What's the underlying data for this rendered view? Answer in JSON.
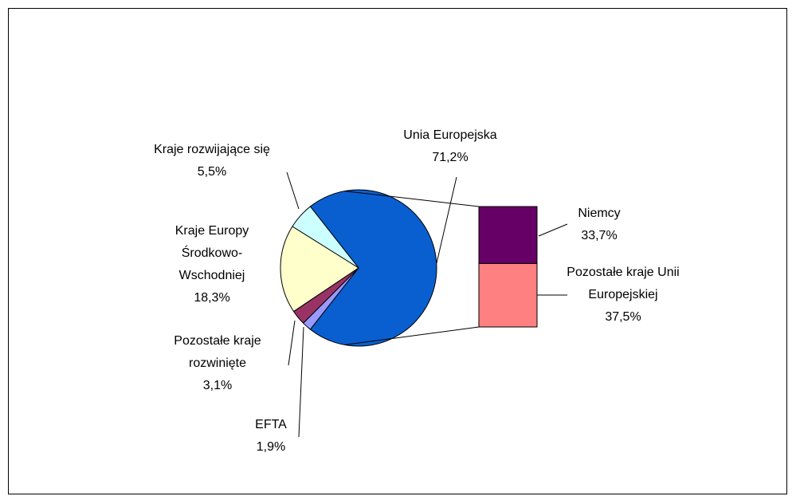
{
  "chart_data": {
    "type": "pie",
    "categories": [
      "Unia Europejska",
      "Kraje rozwijające się",
      "Kraje Europy Środkowo-Wschodniej",
      "Pozostałe kraje rozwinięte",
      "EFTA"
    ],
    "values": [
      71.2,
      5.5,
      18.3,
      3.1,
      1.9
    ],
    "value_labels": [
      "71,2%",
      "5,5%",
      "18,3%",
      "3,1%",
      "1,9%"
    ],
    "colors": [
      "#0a5fd0",
      "#ccffff",
      "#ffffcc",
      "#993366",
      "#9999ff"
    ],
    "breakdown": {
      "type": "bar",
      "categories": [
        "Niemcy",
        "Pozostałe kraje Unii Europejskiej"
      ],
      "values": [
        33.7,
        37.5
      ],
      "value_labels": [
        "33,7%",
        "37,5%"
      ],
      "colors": [
        "#660066",
        "#ff8080"
      ]
    }
  }
}
